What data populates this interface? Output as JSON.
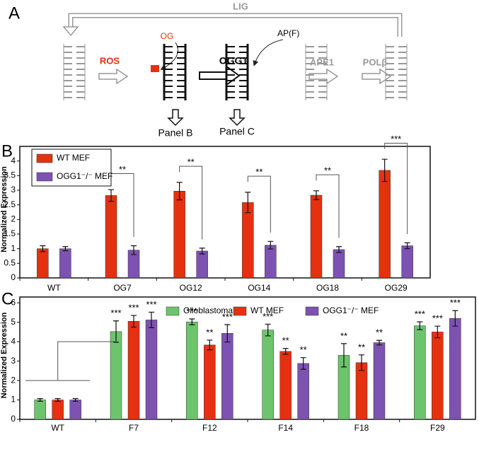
{
  "diagram": {
    "panel": "A",
    "lig": "LIG",
    "ros": "ROS",
    "og": "OG",
    "ogg1": "OGG1",
    "ap": "AP(F)",
    "ape1": "APE1",
    "pol": "POLβ",
    "panel_b": "Panel B",
    "panel_c": "Panel C"
  },
  "chart_data": [
    {
      "type": "bar",
      "panel": "B",
      "y_label": "Normalized Expression",
      "categories": [
        "WT",
        "OG7",
        "OG12",
        "OG14",
        "OG18",
        "OG29"
      ],
      "series": [
        {
          "name": "WT MEF",
          "color": "#e5310f",
          "values": [
            1.0,
            2.82,
            2.97,
            2.58,
            2.83,
            3.68
          ],
          "errors": [
            0.1,
            0.2,
            0.3,
            0.35,
            0.15,
            0.38
          ]
        },
        {
          "name": "OGG1⁻/⁻ MEF",
          "color": "#7d52b3",
          "values": [
            1.0,
            0.95,
            0.92,
            1.12,
            0.97,
            1.1
          ],
          "errors": [
            0.07,
            0.15,
            0.1,
            0.13,
            0.1,
            0.1
          ]
        }
      ],
      "significance": [
        null,
        "**",
        "**",
        "**",
        "**",
        "***"
      ],
      "ylim": [
        0,
        4.5
      ],
      "yticks": [
        0,
        0.5,
        1,
        1.5,
        2,
        2.5,
        3,
        3.5,
        4
      ],
      "legend": "top-left"
    },
    {
      "type": "bar",
      "panel": "C",
      "y_label": "Normalized Expression",
      "categories": [
        "WT",
        "F7",
        "F12",
        "F14",
        "F18",
        "F29"
      ],
      "series": [
        {
          "name": "Glioblastoma",
          "color": "#6cc46c",
          "values": [
            1.0,
            4.52,
            5.02,
            4.6,
            3.3,
            4.82
          ],
          "errors": [
            0.07,
            0.55,
            0.15,
            0.3,
            0.6,
            0.2
          ],
          "sig": [
            null,
            "***",
            "***",
            "***",
            "**",
            "***"
          ]
        },
        {
          "name": "WT MEF",
          "color": "#e5310f",
          "values": [
            1.0,
            5.05,
            3.83,
            3.5,
            2.92,
            4.5
          ],
          "errors": [
            0.07,
            0.3,
            0.25,
            0.15,
            0.4,
            0.3
          ],
          "sig": [
            null,
            "***",
            "**",
            "**",
            "**",
            "***"
          ]
        },
        {
          "name": "OGG1⁻/⁻ MEF",
          "color": "#7d52b3",
          "values": [
            1.0,
            5.12,
            4.43,
            2.88,
            3.95,
            5.2
          ],
          "errors": [
            0.07,
            0.4,
            0.45,
            0.3,
            0.12,
            0.4
          ],
          "sig": [
            null,
            "***",
            "***",
            "**",
            "**",
            "***"
          ]
        }
      ],
      "ylim": [
        0,
        6.3
      ],
      "yticks": [
        0,
        1,
        2,
        3,
        4,
        5,
        6
      ],
      "legend": "top"
    }
  ]
}
